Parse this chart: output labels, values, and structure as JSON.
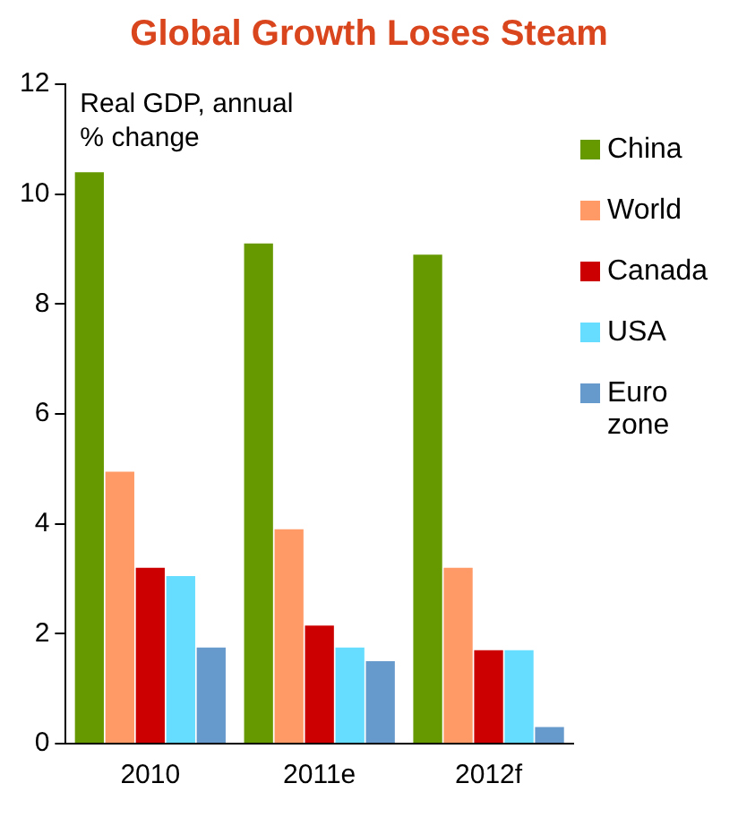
{
  "chart_data": {
    "type": "bar",
    "title": "Global Growth Loses Steam",
    "ylabel": "Real GDP, annual % change",
    "categories": [
      "2010",
      "2011e",
      "2012f"
    ],
    "series": [
      {
        "name": "China",
        "color": "#669900",
        "values": [
          10.4,
          9.1,
          8.9
        ]
      },
      {
        "name": "World",
        "color": "#ff9966",
        "values": [
          4.95,
          3.9,
          3.2
        ]
      },
      {
        "name": "Canada",
        "color": "#cc0000",
        "values": [
          3.2,
          2.15,
          1.7
        ]
      },
      {
        "name": "USA",
        "color": "#66ddff",
        "values": [
          3.05,
          1.75,
          1.7
        ]
      },
      {
        "name": "Euro zone",
        "color": "#6699cc",
        "values": [
          1.75,
          1.5,
          0.3
        ]
      }
    ],
    "ylim": [
      0,
      12
    ],
    "yticks": [
      0,
      2,
      4,
      6,
      8,
      10,
      12
    ],
    "grid": false,
    "legend": "right"
  }
}
